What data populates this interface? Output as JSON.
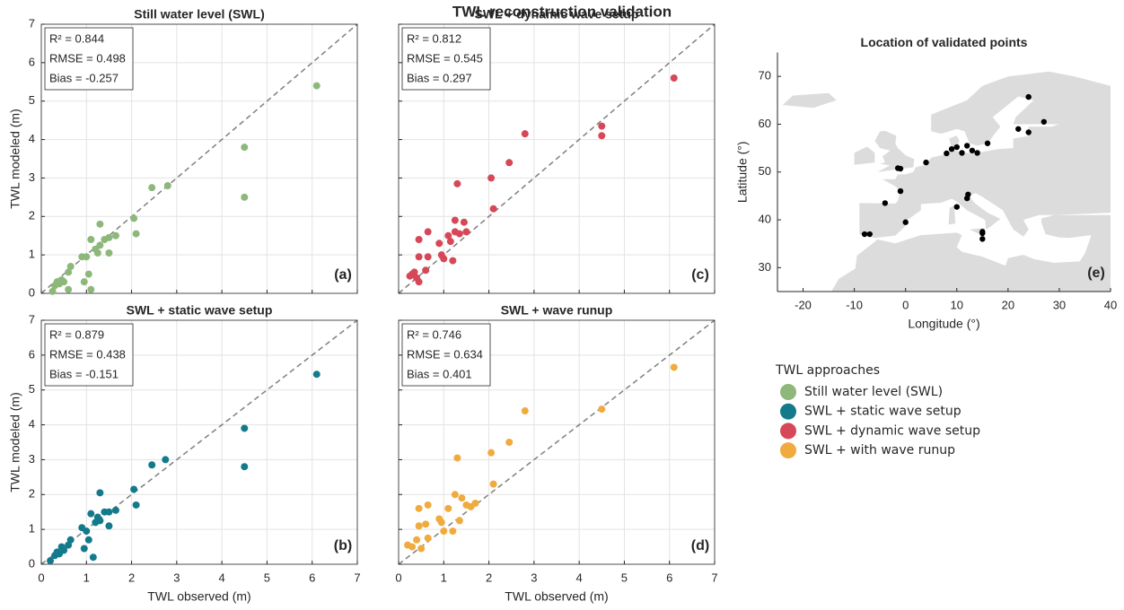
{
  "title": "TWL reconstruction validation",
  "legend": {
    "title": "TWL approaches"
  },
  "chart_data": [
    {
      "type": "scatter",
      "title": "Still water level (SWL)",
      "ylabel": "TWL modeled (m)",
      "xlim": [
        0,
        7
      ],
      "ylim": [
        0,
        7
      ],
      "xticks": [
        0,
        1,
        2,
        3,
        4,
        5,
        6,
        7
      ],
      "yticks": [
        0,
        1,
        2,
        3,
        4,
        5,
        6,
        7
      ],
      "show_xtick_labels": false,
      "show_ytick_labels": true,
      "grid": true,
      "identity_line": true,
      "annotations": [
        "R² = 0.844",
        "RMSE = 0.498",
        "Bias = -0.257"
      ],
      "panel_label": "(a)",
      "series": [
        {
          "name": "Still water level (SWL)",
          "color": "#8db87a",
          "x": [
            0.25,
            0.3,
            0.35,
            0.4,
            0.45,
            0.5,
            0.6,
            0.6,
            0.65,
            0.9,
            0.95,
            1.0,
            1.05,
            1.1,
            1.1,
            1.2,
            1.25,
            1.3,
            1.3,
            1.4,
            1.5,
            1.5,
            1.65,
            2.05,
            2.1,
            2.45,
            2.8,
            4.5,
            4.5,
            6.1
          ],
          "values": [
            0.05,
            0.2,
            0.3,
            0.25,
            0.35,
            0.3,
            0.1,
            0.55,
            0.7,
            0.95,
            0.3,
            0.95,
            0.5,
            0.1,
            1.4,
            1.15,
            1.05,
            1.8,
            1.25,
            1.4,
            1.05,
            1.45,
            1.5,
            1.95,
            1.55,
            2.75,
            2.8,
            3.8,
            2.5,
            5.4
          ]
        }
      ]
    },
    {
      "type": "scatter",
      "title": "SWL + static wave setup",
      "xlabel": "TWL observed (m)",
      "ylabel": "TWL modeled (m)",
      "xlim": [
        0,
        7
      ],
      "ylim": [
        0,
        7
      ],
      "xticks": [
        0,
        1,
        2,
        3,
        4,
        5,
        6,
        7
      ],
      "yticks": [
        0,
        1,
        2,
        3,
        4,
        5,
        6,
        7
      ],
      "show_xtick_labels": true,
      "show_ytick_labels": true,
      "grid": true,
      "identity_line": true,
      "annotations": [
        "R² = 0.879",
        "RMSE = 0.438",
        "Bias = -0.151"
      ],
      "panel_label": "(b)",
      "series": [
        {
          "name": "SWL + static wave setup",
          "color": "#137a8c",
          "x": [
            0.2,
            0.3,
            0.35,
            0.4,
            0.45,
            0.5,
            0.6,
            0.65,
            0.9,
            0.95,
            1.0,
            1.05,
            1.1,
            1.15,
            1.2,
            1.25,
            1.3,
            1.3,
            1.4,
            1.5,
            1.5,
            1.65,
            2.05,
            2.1,
            2.45,
            2.75,
            4.5,
            4.5,
            6.1
          ],
          "values": [
            0.1,
            0.25,
            0.35,
            0.3,
            0.5,
            0.4,
            0.55,
            0.7,
            1.05,
            0.45,
            0.95,
            0.7,
            1.45,
            0.2,
            1.2,
            1.35,
            2.05,
            1.25,
            1.5,
            1.1,
            1.5,
            1.55,
            2.15,
            1.7,
            2.85,
            3.0,
            3.9,
            2.8,
            5.45
          ]
        }
      ]
    },
    {
      "type": "scatter",
      "title": "SWL + dynamic wave setup",
      "xlim": [
        0,
        7
      ],
      "ylim": [
        0,
        7
      ],
      "xticks": [
        0,
        1,
        2,
        3,
        4,
        5,
        6,
        7
      ],
      "yticks": [
        0,
        1,
        2,
        3,
        4,
        5,
        6,
        7
      ],
      "show_xtick_labels": false,
      "show_ytick_labels": false,
      "grid": true,
      "identity_line": true,
      "annotations": [
        "R² = 0.812",
        "RMSE = 0.545",
        "Bias = 0.297"
      ],
      "panel_label": "(c)",
      "series": [
        {
          "name": "SWL + dynamic wave setup",
          "color": "#d64858",
          "x": [
            0.25,
            0.3,
            0.35,
            0.4,
            0.45,
            0.45,
            0.45,
            0.6,
            0.65,
            0.65,
            0.9,
            0.95,
            1.0,
            1.1,
            1.15,
            1.2,
            1.25,
            1.25,
            1.3,
            1.35,
            1.45,
            1.5,
            2.05,
            2.1,
            2.45,
            2.8,
            4.5,
            4.5,
            6.1
          ],
          "values": [
            0.45,
            0.5,
            0.55,
            0.4,
            0.3,
            0.95,
            1.4,
            0.6,
            0.95,
            1.6,
            1.3,
            1.0,
            0.9,
            1.5,
            1.35,
            0.85,
            1.6,
            1.9,
            2.85,
            1.55,
            1.85,
            1.6,
            3.0,
            2.2,
            3.4,
            4.15,
            4.35,
            4.1,
            5.6
          ]
        }
      ]
    },
    {
      "type": "scatter",
      "title": "SWL + wave runup",
      "xlabel": "TWL observed (m)",
      "xlim": [
        0,
        7
      ],
      "ylim": [
        0,
        7
      ],
      "xticks": [
        0,
        1,
        2,
        3,
        4,
        5,
        6,
        7
      ],
      "yticks": [
        0,
        1,
        2,
        3,
        4,
        5,
        6,
        7
      ],
      "show_xtick_labels": true,
      "show_ytick_labels": false,
      "grid": true,
      "identity_line": true,
      "annotations": [
        "R² = 0.746",
        "RMSE = 0.634",
        "Bias = 0.401"
      ],
      "panel_label": "(d)",
      "series": [
        {
          "name": "SWL + with wave runup",
          "color": "#f0ab3e",
          "x": [
            0.2,
            0.3,
            0.4,
            0.45,
            0.45,
            0.5,
            0.6,
            0.65,
            0.65,
            0.9,
            0.95,
            1.0,
            1.1,
            1.2,
            1.25,
            1.3,
            1.35,
            1.4,
            1.5,
            1.6,
            1.7,
            2.05,
            2.1,
            2.45,
            2.8,
            4.5,
            6.1
          ],
          "values": [
            0.55,
            0.5,
            0.7,
            1.1,
            1.6,
            0.45,
            1.15,
            1.7,
            0.75,
            1.3,
            1.2,
            0.95,
            1.6,
            0.95,
            2.0,
            3.05,
            1.25,
            1.9,
            1.7,
            1.65,
            1.75,
            3.2,
            2.3,
            3.5,
            4.4,
            4.45,
            5.65
          ]
        }
      ]
    },
    {
      "type": "map",
      "title": "Location of validated points",
      "xlabel": "Longitude (°)",
      "ylabel": "Latitude (°)",
      "xlim": [
        -25,
        40
      ],
      "ylim": [
        25,
        75
      ],
      "xticks": [
        -20,
        -10,
        0,
        10,
        20,
        30,
        40
      ],
      "yticks": [
        30,
        40,
        50,
        60,
        70
      ],
      "show_xtick_labels": true,
      "show_ytick_labels": true,
      "grid": false,
      "panel_label": "(e)",
      "series": [
        {
          "color": "#000000",
          "x": [
            -8,
            -7,
            -4,
            -1,
            -1.5,
            -1,
            0,
            4,
            8,
            9,
            10,
            10,
            11,
            12,
            12,
            12.2,
            13,
            14,
            15,
            15,
            15,
            16,
            22,
            24,
            24,
            27
          ],
          "values": [
            37,
            37,
            43.5,
            50.7,
            50.8,
            46,
            39.5,
            52,
            53.9,
            54.8,
            55.2,
            42.7,
            54,
            55.5,
            44.5,
            45.3,
            54.5,
            54,
            36,
            37.2,
            37.5,
            56,
            59,
            58.3,
            65.7,
            60.5
          ]
        }
      ]
    }
  ]
}
